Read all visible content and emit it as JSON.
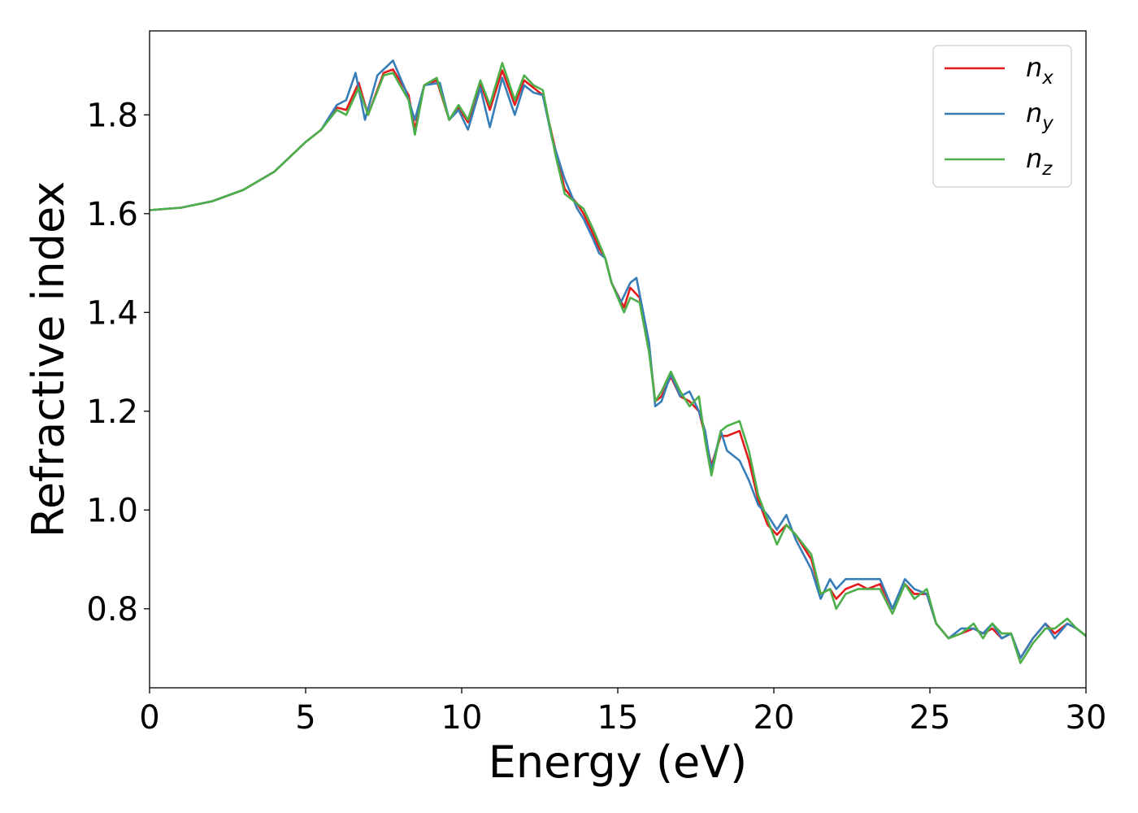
{
  "chart_data": {
    "type": "line",
    "title": "",
    "xlabel": "Energy (eV)",
    "ylabel": "Refractive index",
    "xlim": [
      0,
      30
    ],
    "ylim": [
      0.64,
      1.97
    ],
    "xticks": [
      0,
      5,
      10,
      15,
      20,
      25,
      30
    ],
    "yticks": [
      0.8,
      1.0,
      1.2,
      1.4,
      1.6,
      1.8
    ],
    "xtick_labels": [
      "0",
      "5",
      "10",
      "15",
      "20",
      "25",
      "30"
    ],
    "ytick_labels": [
      "0.8",
      "1.0",
      "1.2",
      "1.4",
      "1.6",
      "1.8"
    ],
    "grid": false,
    "legend": {
      "position": "top-right",
      "entries": [
        {
          "base": "n",
          "sub": "x",
          "color": "#e41a1c"
        },
        {
          "base": "n",
          "sub": "y",
          "color": "#377eb8"
        },
        {
          "base": "n",
          "sub": "z",
          "color": "#4daf4a"
        }
      ]
    },
    "series": [
      {
        "color": "#e41a1c",
        "x": [
          0,
          1,
          2,
          3,
          4,
          5,
          5.5,
          6,
          6.3,
          6.7,
          7,
          7.5,
          7.8,
          8.3,
          8.5,
          8.8,
          9.2,
          9.6,
          9.9,
          10.2,
          10.6,
          10.9,
          11.3,
          11.7,
          12,
          12.3,
          12.6,
          13,
          13.3,
          13.7,
          13.9,
          14.2,
          14.4,
          14.6,
          14.8,
          15.2,
          15.4,
          15.7,
          16,
          16.2,
          16.4,
          16.7,
          17,
          17.3,
          17.6,
          17.8,
          18,
          18.3,
          18.5,
          18.9,
          19.2,
          19.5,
          19.8,
          20.1,
          20.4,
          20.7,
          21.2,
          21.5,
          21.8,
          22.0,
          22.3,
          22.7,
          23.0,
          23.4,
          23.8,
          24.2,
          24.5,
          24.9,
          25.2,
          25.6,
          26.0,
          26.4,
          26.7,
          27.0,
          27.3,
          27.6,
          27.9,
          28.3,
          28.7,
          29.0,
          29.4,
          29.7,
          30
        ],
        "y": [
          1.607,
          1.612,
          1.625,
          1.648,
          1.685,
          1.745,
          1.77,
          1.815,
          1.81,
          1.865,
          1.8,
          1.885,
          1.892,
          1.84,
          1.77,
          1.86,
          1.87,
          1.79,
          1.815,
          1.785,
          1.865,
          1.81,
          1.89,
          1.82,
          1.87,
          1.855,
          1.84,
          1.73,
          1.65,
          1.62,
          1.6,
          1.56,
          1.53,
          1.51,
          1.46,
          1.41,
          1.45,
          1.43,
          1.33,
          1.22,
          1.23,
          1.27,
          1.23,
          1.22,
          1.2,
          1.15,
          1.09,
          1.15,
          1.15,
          1.16,
          1.1,
          1.02,
          0.97,
          0.95,
          0.97,
          0.95,
          0.9,
          0.83,
          0.84,
          0.82,
          0.84,
          0.85,
          0.84,
          0.85,
          0.8,
          0.85,
          0.83,
          0.83,
          0.77,
          0.74,
          0.75,
          0.76,
          0.75,
          0.76,
          0.74,
          0.75,
          0.7,
          0.74,
          0.77,
          0.75,
          0.77,
          0.76,
          0.745
        ]
      },
      {
        "color": "#377eb8",
        "x": [
          0,
          1,
          2,
          3,
          4,
          5,
          5.5,
          6,
          6.3,
          6.6,
          6.9,
          7.3,
          7.8,
          8.2,
          8.5,
          8.8,
          9.3,
          9.6,
          9.9,
          10.2,
          10.6,
          10.9,
          11.3,
          11.7,
          12,
          12.3,
          12.6,
          12.9,
          13.3,
          13.7,
          13.9,
          14.2,
          14.4,
          14.6,
          14.8,
          15.1,
          15.4,
          15.6,
          16,
          16.2,
          16.4,
          16.7,
          17,
          17.3,
          17.6,
          17.8,
          18,
          18.3,
          18.5,
          18.9,
          19.2,
          19.5,
          19.8,
          20.1,
          20.4,
          20.7,
          21.2,
          21.5,
          21.8,
          22.0,
          22.3,
          22.7,
          23.0,
          23.4,
          23.8,
          24.2,
          24.5,
          24.9,
          25.2,
          25.6,
          26.0,
          26.4,
          26.7,
          27.0,
          27.3,
          27.6,
          27.9,
          28.3,
          28.7,
          29.0,
          29.4,
          29.7,
          30
        ],
        "y": [
          1.607,
          1.612,
          1.625,
          1.648,
          1.685,
          1.745,
          1.77,
          1.82,
          1.83,
          1.885,
          1.79,
          1.88,
          1.91,
          1.85,
          1.79,
          1.86,
          1.865,
          1.79,
          1.81,
          1.77,
          1.855,
          1.775,
          1.875,
          1.8,
          1.86,
          1.845,
          1.84,
          1.75,
          1.67,
          1.61,
          1.59,
          1.55,
          1.52,
          1.51,
          1.46,
          1.42,
          1.46,
          1.47,
          1.34,
          1.21,
          1.22,
          1.275,
          1.23,
          1.24,
          1.2,
          1.16,
          1.08,
          1.16,
          1.12,
          1.1,
          1.06,
          1.01,
          0.99,
          0.96,
          0.99,
          0.94,
          0.88,
          0.82,
          0.86,
          0.84,
          0.86,
          0.86,
          0.86,
          0.86,
          0.8,
          0.86,
          0.84,
          0.83,
          0.77,
          0.74,
          0.76,
          0.76,
          0.75,
          0.77,
          0.74,
          0.75,
          0.7,
          0.74,
          0.77,
          0.74,
          0.77,
          0.76,
          0.745
        ]
      },
      {
        "color": "#4daf4a",
        "x": [
          0,
          1,
          2,
          3,
          4,
          5,
          5.5,
          6,
          6.3,
          6.7,
          7,
          7.5,
          7.8,
          8.3,
          8.5,
          8.8,
          9.2,
          9.6,
          9.9,
          10.2,
          10.6,
          10.9,
          11.3,
          11.7,
          12,
          12.3,
          12.6,
          13,
          13.3,
          13.7,
          13.9,
          14.2,
          14.4,
          14.6,
          14.8,
          15.2,
          15.4,
          15.7,
          16,
          16.2,
          16.4,
          16.7,
          17,
          17.3,
          17.6,
          17.8,
          18,
          18.3,
          18.5,
          18.9,
          19.2,
          19.5,
          19.8,
          20.1,
          20.4,
          20.7,
          21.2,
          21.5,
          21.8,
          22.0,
          22.3,
          22.7,
          23.0,
          23.4,
          23.8,
          24.2,
          24.5,
          24.9,
          25.2,
          25.6,
          26.0,
          26.4,
          26.7,
          27.0,
          27.3,
          27.6,
          27.9,
          28.3,
          28.7,
          29.0,
          29.4,
          29.7,
          30
        ],
        "y": [
          1.607,
          1.612,
          1.625,
          1.648,
          1.685,
          1.745,
          1.77,
          1.81,
          1.8,
          1.855,
          1.8,
          1.88,
          1.885,
          1.83,
          1.76,
          1.86,
          1.875,
          1.79,
          1.82,
          1.79,
          1.87,
          1.82,
          1.905,
          1.83,
          1.88,
          1.86,
          1.85,
          1.72,
          1.64,
          1.62,
          1.61,
          1.57,
          1.54,
          1.51,
          1.46,
          1.4,
          1.43,
          1.42,
          1.32,
          1.22,
          1.24,
          1.28,
          1.24,
          1.21,
          1.23,
          1.14,
          1.07,
          1.16,
          1.17,
          1.18,
          1.12,
          1.03,
          0.98,
          0.93,
          0.97,
          0.95,
          0.91,
          0.83,
          0.84,
          0.8,
          0.83,
          0.84,
          0.84,
          0.84,
          0.79,
          0.85,
          0.82,
          0.84,
          0.77,
          0.74,
          0.75,
          0.77,
          0.74,
          0.77,
          0.75,
          0.75,
          0.69,
          0.73,
          0.76,
          0.76,
          0.78,
          0.76,
          0.745
        ]
      }
    ]
  }
}
